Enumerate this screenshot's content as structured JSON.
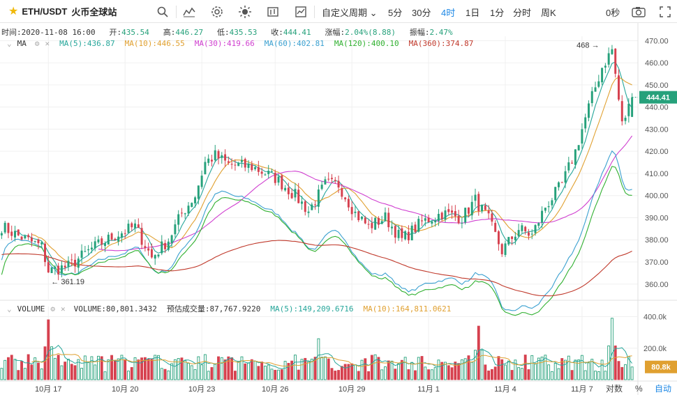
{
  "toolbar": {
    "symbol": "ETH/USDT",
    "exchange": "火币全球站",
    "period_menu": "自定义周期",
    "periods": [
      "5分",
      "30分",
      "4时",
      "1日",
      "1分",
      "分时",
      "周K"
    ],
    "active_period": "4时",
    "countdown": "0秒"
  },
  "ohlc": {
    "time_label": "时间:",
    "time": "2020-11-08 16:00",
    "open_label": "开:",
    "open": "435.54",
    "high_label": "高:",
    "high": "446.27",
    "low_label": "低:",
    "low": "435.53",
    "close_label": "收:",
    "close": "444.41",
    "change_label": "涨幅:",
    "change": "2.04%(8.88)",
    "amp_label": "振幅:",
    "amp": "2.47%"
  },
  "ma_legend": {
    "title": "MA",
    "items": [
      {
        "text": "MA(5):436.87",
        "color": "#26a69a"
      },
      {
        "text": "MA(10):446.55",
        "color": "#e0a030"
      },
      {
        "text": "MA(30):419.66",
        "color": "#d040d0"
      },
      {
        "text": "MA(60):402.81",
        "color": "#3aa0d0"
      },
      {
        "text": "MA(120):400.10",
        "color": "#30b030"
      },
      {
        "text": "MA(360):374.87",
        "color": "#c0392b"
      }
    ]
  },
  "vol_legend": {
    "title": "VOLUME",
    "items": [
      {
        "text": "VOLUME:80,801.3432",
        "color": "#333333"
      },
      {
        "text": "预估成交量:87,767.9220",
        "color": "#333333"
      },
      {
        "text": "MA(5):149,209.6716",
        "color": "#26a69a"
      },
      {
        "text": "MA(10):164,811.0621",
        "color": "#e0a030"
      }
    ]
  },
  "colors": {
    "up": "#26a17b",
    "down": "#d6414f",
    "price_tag": "#26a17b",
    "grid": "#f0f0f0"
  },
  "chart_data": {
    "type": "candlestick",
    "ylim": [
      353,
      472
    ],
    "y_ticks": [
      360,
      370,
      380,
      390,
      400,
      410,
      420,
      430,
      440,
      450,
      460,
      470
    ],
    "y_tick_labels": [
      "360.00",
      "370.00",
      "380.00",
      "390.00",
      "400.00",
      "410.00",
      "420.00",
      "430.00",
      "440.00",
      "450.00",
      "460.00",
      "470.00"
    ],
    "vol_ylim": [
      0,
      420000
    ],
    "vol_ticks": [
      200000,
      400000
    ],
    "vol_tick_labels": [
      "200.0k",
      "400.0k"
    ],
    "x_labels": [
      "10月 17",
      "10月 20",
      "10月 23",
      "10月 26",
      "10月 29",
      "11月 1",
      "11月 4",
      "11月 7"
    ],
    "x_label_candle_index": [
      14,
      37,
      60,
      82,
      105,
      128,
      151,
      174
    ],
    "last_price": 444.41,
    "last_price_label": "444.41",
    "last_volume": 80801,
    "last_volume_label": "80.8k",
    "max_marker": {
      "value": 468,
      "label": "468",
      "arrow": "→",
      "candle_index": 180
    },
    "min_marker": {
      "value": 361.19,
      "label": "361.19",
      "arrow": "←",
      "candle_index": 14
    },
    "waypoints": [
      [
        0,
        386
      ],
      [
        6,
        381
      ],
      [
        12,
        377
      ],
      [
        14,
        366
      ],
      [
        20,
        368
      ],
      [
        27,
        376
      ],
      [
        34,
        382
      ],
      [
        40,
        386
      ],
      [
        45,
        372
      ],
      [
        50,
        380
      ],
      [
        54,
        392
      ],
      [
        58,
        400
      ],
      [
        61,
        415
      ],
      [
        64,
        418
      ],
      [
        68,
        414
      ],
      [
        75,
        413
      ],
      [
        82,
        408
      ],
      [
        88,
        400
      ],
      [
        92,
        393
      ],
      [
        97,
        405
      ],
      [
        101,
        405
      ],
      [
        106,
        392
      ],
      [
        110,
        386
      ],
      [
        115,
        390
      ],
      [
        120,
        380
      ],
      [
        126,
        388
      ],
      [
        132,
        392
      ],
      [
        138,
        390
      ],
      [
        142,
        398
      ],
      [
        146,
        389
      ],
      [
        150,
        375
      ],
      [
        155,
        385
      ],
      [
        159,
        382
      ],
      [
        163,
        395
      ],
      [
        168,
        405
      ],
      [
        172,
        420
      ],
      [
        176,
        440
      ],
      [
        180,
        458
      ],
      [
        183,
        466
      ],
      [
        186,
        432
      ],
      [
        189,
        444
      ]
    ],
    "volume_spikes": [
      [
        14,
        380000
      ],
      [
        95,
        260000
      ],
      [
        143,
        340000
      ],
      [
        183,
        390000
      ]
    ],
    "ma_series": [
      {
        "name": "MA(5)",
        "color": "#26a69a",
        "period": 5
      },
      {
        "name": "MA(10)",
        "color": "#e0a030",
        "period": 10
      },
      {
        "name": "MA(30)",
        "color": "#d040d0",
        "period": 30
      },
      {
        "name": "MA(60)",
        "color": "#3aa0d0",
        "period": 60
      },
      {
        "name": "MA(120)",
        "color": "#30b030",
        "period": 120
      },
      {
        "name": "MA(360)",
        "color": "#c0392b",
        "period": 360
      }
    ],
    "bottom_right": {
      "log_label": "对数",
      "pct_label": "%",
      "auto_label": "自动"
    }
  }
}
